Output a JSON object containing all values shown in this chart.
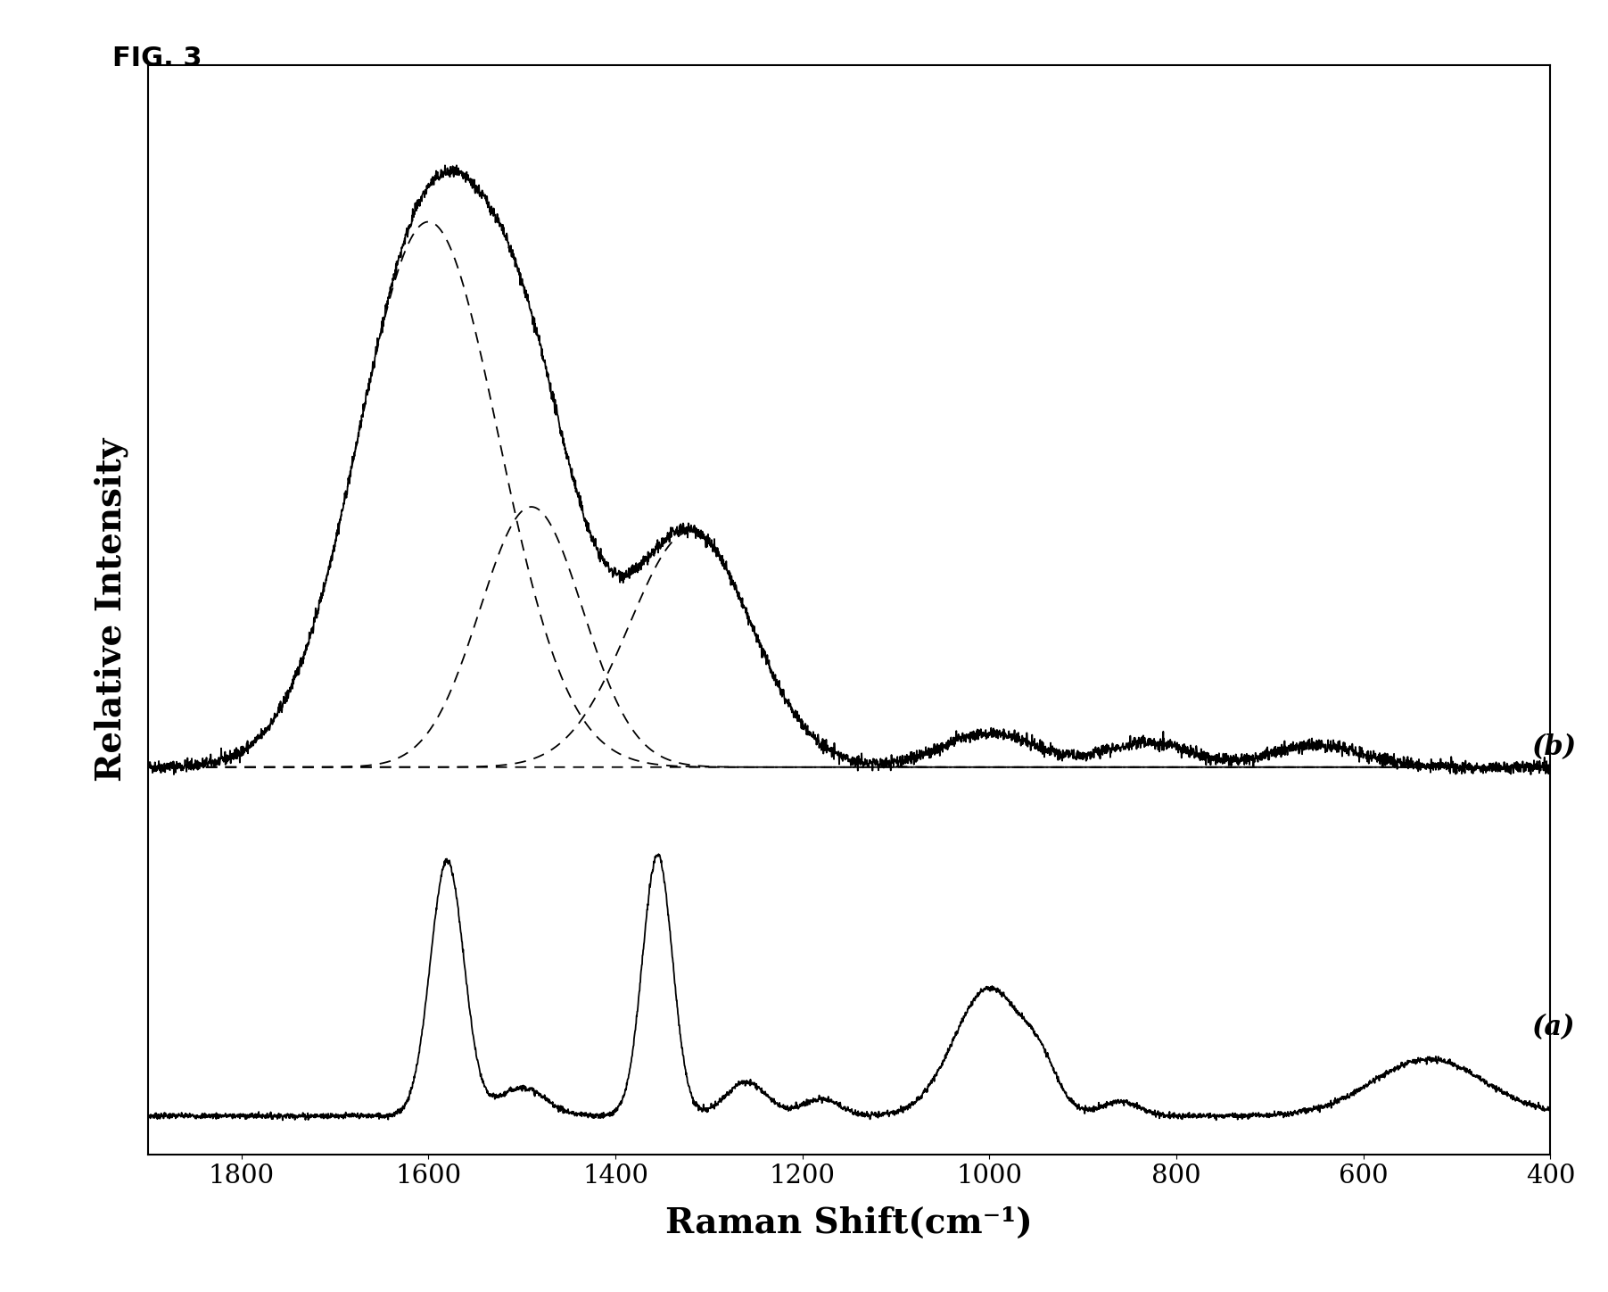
{
  "title": "FIG. 3",
  "xlabel": "Raman Shift(cm⁻¹)",
  "ylabel": "Relative Intensity",
  "background_color": "#ffffff",
  "label_a": "(a)",
  "label_b": "(b)"
}
